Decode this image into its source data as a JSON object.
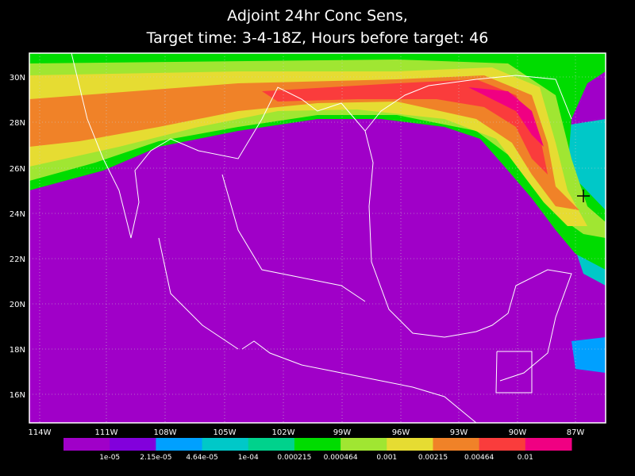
{
  "title": [
    "Adjoint 24hr Conc Sens,",
    "Target time: 3-4-18Z, Hours before target: 46"
  ],
  "map": {
    "lat_labels": [
      "30N",
      "28N",
      "26N",
      "24N",
      "22N",
      "20N",
      "18N",
      "16N"
    ],
    "lon_labels": [
      "114W",
      "111W",
      "108W",
      "105W",
      "102W",
      "99W",
      "96W",
      "93W",
      "90W",
      "87W"
    ]
  },
  "colorbar": {
    "colors": [
      "#a000c8",
      "#8200dc",
      "#00a0ff",
      "#00c8c8",
      "#00d28c",
      "#00dc00",
      "#a0e632",
      "#e6dc32",
      "#f08228",
      "#fa3c3c",
      "#f00082"
    ],
    "labels": [
      "1e-05",
      "2.15e-05",
      "4.64e-05",
      "1e-04",
      "0.000215",
      "0.000464",
      "0.001",
      "0.00215",
      "0.00464",
      "0.01"
    ]
  }
}
